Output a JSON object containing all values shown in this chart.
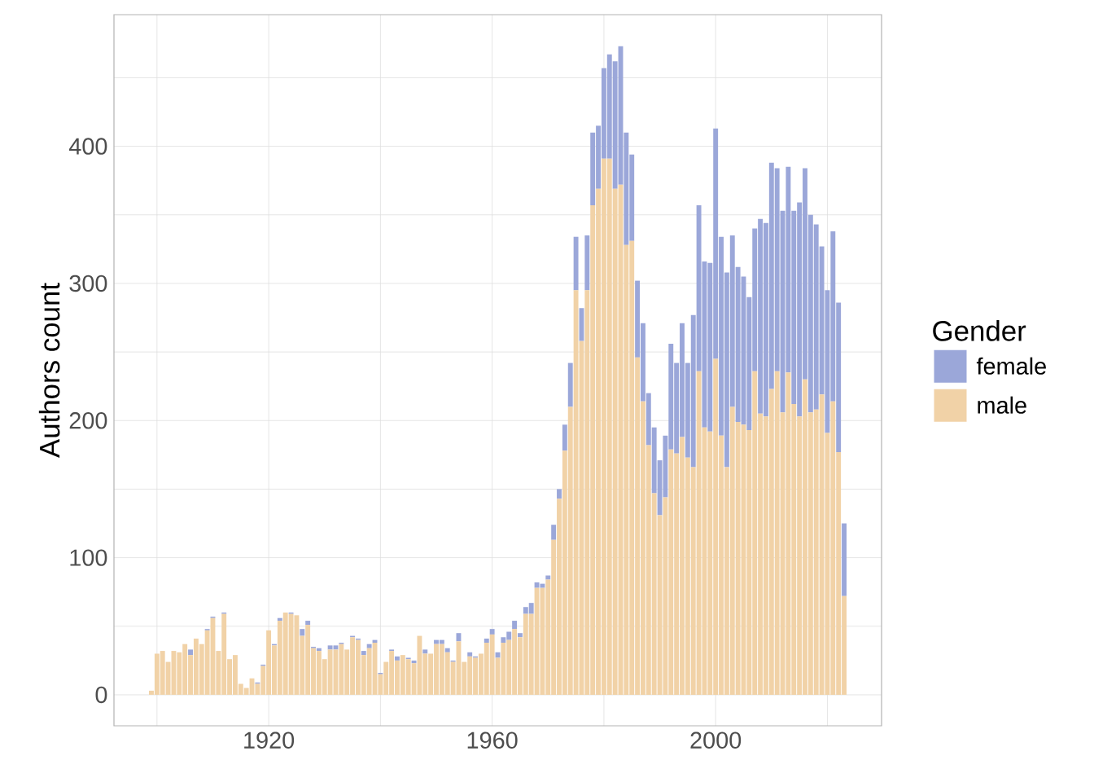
{
  "chart_data": {
    "type": "bar",
    "stacked": true,
    "ylabel": "Authors count",
    "legend_title": "Gender",
    "legend": "right",
    "grid": true,
    "x": [
      1899,
      1900,
      1901,
      1902,
      1903,
      1904,
      1905,
      1906,
      1907,
      1908,
      1909,
      1910,
      1911,
      1912,
      1913,
      1914,
      1915,
      1916,
      1917,
      1918,
      1919,
      1920,
      1921,
      1922,
      1923,
      1924,
      1925,
      1926,
      1927,
      1928,
      1929,
      1930,
      1931,
      1932,
      1933,
      1934,
      1935,
      1936,
      1937,
      1938,
      1939,
      1940,
      1941,
      1942,
      1943,
      1944,
      1945,
      1946,
      1947,
      1948,
      1949,
      1950,
      1951,
      1952,
      1953,
      1954,
      1955,
      1956,
      1957,
      1958,
      1959,
      1960,
      1961,
      1962,
      1963,
      1964,
      1965,
      1966,
      1967,
      1968,
      1969,
      1970,
      1971,
      1972,
      1973,
      1974,
      1975,
      1976,
      1977,
      1978,
      1979,
      1980,
      1981,
      1982,
      1983,
      1984,
      1985,
      1986,
      1987,
      1988,
      1989,
      1990,
      1991,
      1992,
      1993,
      1994,
      1995,
      1996,
      1997,
      1998,
      1999,
      2000,
      2001,
      2002,
      2003,
      2004,
      2005,
      2006,
      2007,
      2008,
      2009,
      2010,
      2011,
      2012,
      2013,
      2014,
      2015,
      2016,
      2017,
      2018,
      2019,
      2020,
      2021,
      2022,
      2023
    ],
    "series": [
      {
        "name": "male",
        "color": "#f1d2a7",
        "values": [
          3,
          30,
          32,
          24,
          32,
          31,
          37,
          29,
          41,
          37,
          47,
          56,
          32,
          59,
          26,
          29,
          8,
          5,
          12,
          8,
          21,
          47,
          36,
          54,
          60,
          59,
          58,
          43,
          51,
          34,
          32,
          26,
          33,
          33,
          37,
          33,
          42,
          40,
          29,
          34,
          38,
          15,
          24,
          32,
          25,
          29,
          26,
          23,
          43,
          30,
          30,
          37,
          37,
          31,
          24,
          39,
          24,
          28,
          27,
          30,
          38,
          44,
          27,
          38,
          40,
          48,
          42,
          59,
          59,
          78,
          78,
          84,
          113,
          143,
          178,
          210,
          295,
          258,
          295,
          357,
          369,
          391,
          391,
          369,
          372,
          328,
          331,
          246,
          214,
          182,
          147,
          131,
          144,
          179,
          176,
          188,
          173,
          166,
          236,
          195,
          192,
          245,
          189,
          166,
          210,
          199,
          197,
          193,
          236,
          205,
          203,
          223,
          236,
          206,
          235,
          212,
          203,
          230,
          206,
          208,
          219,
          191,
          214,
          177,
          72
        ]
      },
      {
        "name": "female",
        "color": "#9ba7d9",
        "values": [
          0,
          0,
          0,
          0,
          0,
          0,
          0,
          4,
          0,
          0,
          1,
          1,
          0,
          1,
          0,
          0,
          0,
          0,
          0,
          1,
          1,
          0,
          1,
          2,
          0,
          1,
          0,
          5,
          3,
          1,
          2,
          0,
          3,
          3,
          1,
          0,
          1,
          1,
          3,
          3,
          2,
          1,
          0,
          1,
          3,
          0,
          1,
          2,
          0,
          3,
          0,
          3,
          3,
          3,
          1,
          6,
          0,
          3,
          1,
          0,
          3,
          4,
          4,
          4,
          6,
          6,
          3,
          5,
          8,
          4,
          3,
          3,
          11,
          7,
          19,
          32,
          39,
          24,
          40,
          53,
          46,
          66,
          76,
          93,
          101,
          82,
          63,
          56,
          57,
          38,
          48,
          40,
          45,
          77,
          66,
          83,
          69,
          111,
          121,
          121,
          123,
          168,
          145,
          142,
          125,
          113,
          108,
          97,
          104,
          142,
          141,
          165,
          148,
          147,
          150,
          141,
          156,
          154,
          144,
          135,
          108,
          104,
          124,
          109,
          53
        ]
      }
    ],
    "xlim": [
      1892.3,
      2029.7
    ],
    "xticks": [
      {
        "value": 1900,
        "label": null
      },
      1920,
      {
        "value": 1940,
        "label": null
      },
      1960,
      {
        "value": 1980,
        "label": null
      },
      2000,
      {
        "value": 2020,
        "label": null
      }
    ],
    "ylim": [
      -22.6,
      496
    ],
    "yticks": [
      0,
      {
        "value": 50,
        "label": null
      },
      100,
      {
        "value": 150,
        "label": null
      },
      200,
      {
        "value": 250,
        "label": null
      },
      300,
      {
        "value": 350,
        "label": null
      },
      400,
      {
        "value": 450,
        "label": null
      }
    ]
  }
}
